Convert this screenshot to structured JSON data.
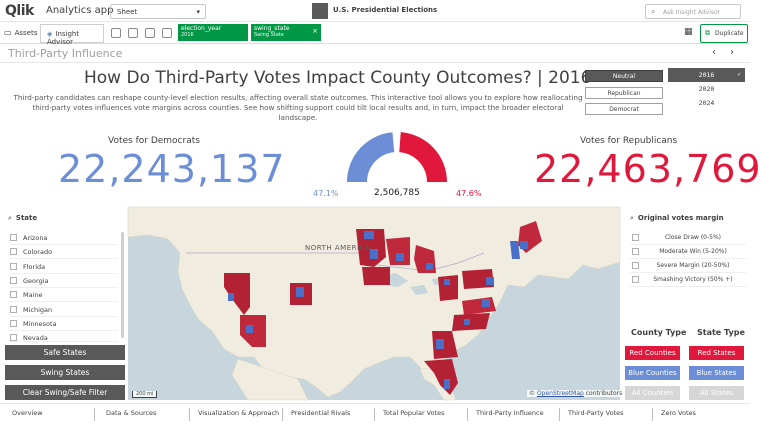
{
  "topbar": {
    "logo": "Qlik",
    "app_title": "Analytics app",
    "sheet_selector": "Sheet",
    "app_name": "U.S. Presidential Elections",
    "more_menu": "···",
    "search_placeholder": "Ask Insight Advisor"
  },
  "toolbar": {
    "assets_label": "Assets",
    "insight_label": "Insight Advisor",
    "selections": [
      {
        "field": "election_year",
        "value": "2016"
      },
      {
        "field": "swing_state",
        "value": "Swing State"
      }
    ],
    "duplicate_label": "Duplicate"
  },
  "sheet": {
    "title": "Third-Party Influence",
    "prev": "‹",
    "next": "›"
  },
  "header": {
    "headline": "How Do Third-Party Votes Impact County Outcomes? | 2016",
    "description": "Third-party candidates can reshape county-level election results, affecting overall state outcomes. This interactive tool allows you to explore how reallocating third-party votes influences vote margins across counties. See how shifting support could tilt local results and, in turn, impact the broader electoral landscape."
  },
  "party_buttons": [
    {
      "label": "Neutral",
      "selected": true
    },
    {
      "label": "Republican",
      "selected": false
    },
    {
      "label": "Democrat",
      "selected": false
    }
  ],
  "years": [
    {
      "label": "2016",
      "selected": true
    },
    {
      "label": "2020",
      "selected": false
    },
    {
      "label": "2024",
      "selected": false
    }
  ],
  "kpis": {
    "dem_label": "Votes for Democrats",
    "dem_value": "22,243,137",
    "rep_label": "Votes for Republicans",
    "rep_value": "22,463,769",
    "dem_pct": "47.1%",
    "rep_pct": "47.6%",
    "third_party_votes": "2,506,785",
    "gauge": {
      "dem_share": 0.471,
      "rep_share": 0.476
    }
  },
  "state_filter": {
    "header": "State",
    "items": [
      "Arizona",
      "Colorado",
      "Florida",
      "Georgia",
      "Maine",
      "Michigan",
      "Minnesota",
      "Nevada"
    ]
  },
  "state_buttons": [
    "Safe States",
    "Swing States",
    "Clear Swing/Safe Filter"
  ],
  "map": {
    "label": "NORTH AMERICA",
    "scale": "200 mi",
    "attribution_prefix": "© ",
    "attribution_link": "OpenStreetMap",
    "attribution_suffix": " contributors"
  },
  "margin_filter": {
    "header": "Original votes margin",
    "items": [
      "Close Draw (0-5%)",
      "Moderate Win (5-20%)",
      "Severe Margin (20-50%)",
      "Smashing Victory (50% +)"
    ]
  },
  "type_filters": {
    "county_header": "County Type",
    "state_header": "State Type",
    "county_buttons": [
      "Red Counties",
      "Blue Counties",
      "All Counties"
    ],
    "state_buttons": [
      "Red States",
      "Blue States",
      "All States"
    ]
  },
  "colors": {
    "democrat": "#6c8ed6",
    "republican": "#e0183c",
    "qlik_green": "#009845",
    "button_dark": "#595959"
  },
  "bottom_tabs": [
    "Overview",
    "Data & Sources",
    "Visualization & Approach",
    "Presidential Rivals",
    "Total Popular Votes",
    "Third-Party Influence",
    "Third-Party Votes",
    "Zero Votes"
  ]
}
